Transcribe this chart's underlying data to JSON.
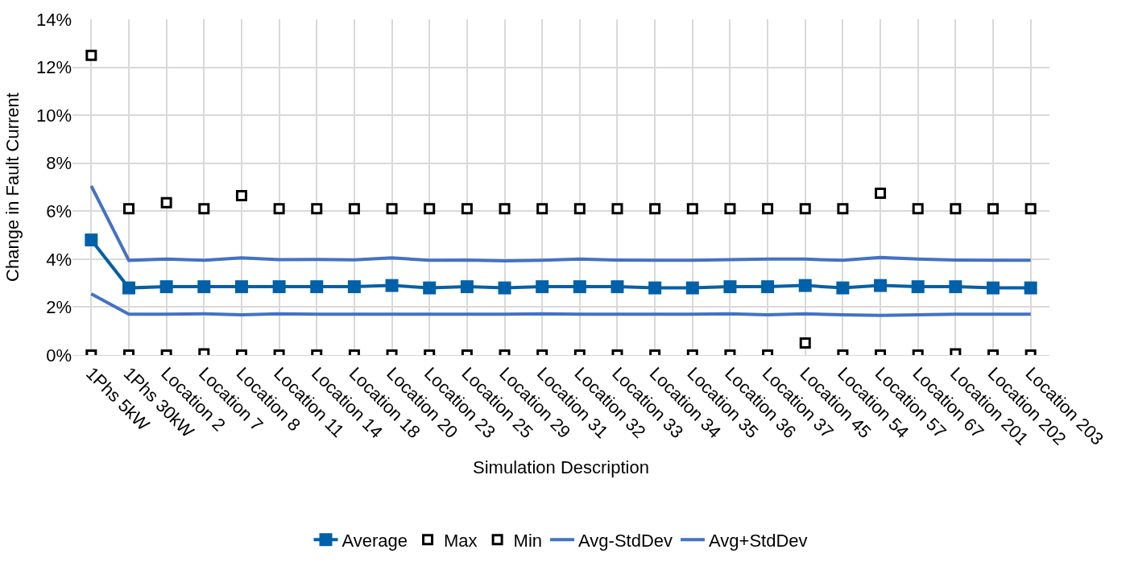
{
  "chart_data": {
    "type": "line",
    "xlabel": "Simulation Description",
    "ylabel": "Change in Fault Current",
    "categories": [
      "1Phs 5kW",
      "1Phs 30kW",
      "Location 2",
      "Location 7",
      "Location 8",
      "Location 11",
      "Location 14",
      "Location 18",
      "Location 20",
      "Location 23",
      "Location 25",
      "Location 29",
      "Location 31",
      "Location 32",
      "Location 33",
      "Location 34",
      "Location 35",
      "Location 36",
      "Location 37",
      "Location 45",
      "Location 54",
      "Location 57",
      "Location 67",
      "Location 201",
      "Location 202",
      "Location 203"
    ],
    "series": [
      {
        "name": "Average",
        "type": "line",
        "color": "#0060a8",
        "marker": "square",
        "values": [
          4.8,
          2.8,
          2.85,
          2.85,
          2.85,
          2.85,
          2.85,
          2.85,
          2.9,
          2.8,
          2.85,
          2.8,
          2.85,
          2.85,
          2.85,
          2.8,
          2.8,
          2.85,
          2.85,
          2.9,
          2.8,
          2.9,
          2.85,
          2.85,
          2.8,
          2.8
        ]
      },
      {
        "name": "Max",
        "type": "scatter",
        "color": "#000000",
        "marker": "square",
        "values": [
          12.5,
          6.1,
          6.35,
          6.1,
          6.65,
          6.1,
          6.1,
          6.1,
          6.1,
          6.1,
          6.1,
          6.1,
          6.1,
          6.1,
          6.1,
          6.1,
          6.1,
          6.1,
          6.1,
          6.1,
          6.1,
          6.75,
          6.1,
          6.1,
          6.1,
          6.1
        ]
      },
      {
        "name": "Min",
        "type": "scatter",
        "color": "#000000",
        "marker": "square",
        "values": [
          0,
          0,
          0,
          0.05,
          0,
          0,
          0,
          0,
          0,
          0,
          0,
          0,
          0,
          0,
          0,
          0,
          0,
          0,
          0,
          0.5,
          0,
          0,
          0,
          0.05,
          0,
          0
        ]
      },
      {
        "name": "Avg-StdDev",
        "type": "line",
        "color": "#4472c4",
        "marker": "none",
        "values": [
          2.55,
          1.7,
          1.7,
          1.72,
          1.68,
          1.72,
          1.7,
          1.7,
          1.7,
          1.7,
          1.7,
          1.7,
          1.72,
          1.7,
          1.7,
          1.7,
          1.7,
          1.72,
          1.68,
          1.72,
          1.68,
          1.65,
          1.68,
          1.7,
          1.7,
          1.7
        ]
      },
      {
        "name": "Avg+StdDev",
        "type": "line",
        "color": "#4472c4",
        "marker": "none",
        "values": [
          7.05,
          3.95,
          4.0,
          3.95,
          4.05,
          3.98,
          3.99,
          3.97,
          4.05,
          3.95,
          3.96,
          3.93,
          3.95,
          4.0,
          3.96,
          3.95,
          3.95,
          3.98,
          4.0,
          4.0,
          3.95,
          4.07,
          4.0,
          3.96,
          3.95,
          3.95
        ]
      }
    ],
    "ylim": [
      0,
      14
    ],
    "yticks": [
      {
        "value": 0,
        "label": "0%"
      },
      {
        "value": 2,
        "label": "2%"
      },
      {
        "value": 4,
        "label": "4%"
      },
      {
        "value": 6,
        "label": "6%"
      },
      {
        "value": 8,
        "label": "8%"
      },
      {
        "value": 10,
        "label": "10%"
      },
      {
        "value": 12,
        "label": "12%"
      },
      {
        "value": 14,
        "label": "14%"
      }
    ],
    "grid": true,
    "legend": "bottom"
  }
}
